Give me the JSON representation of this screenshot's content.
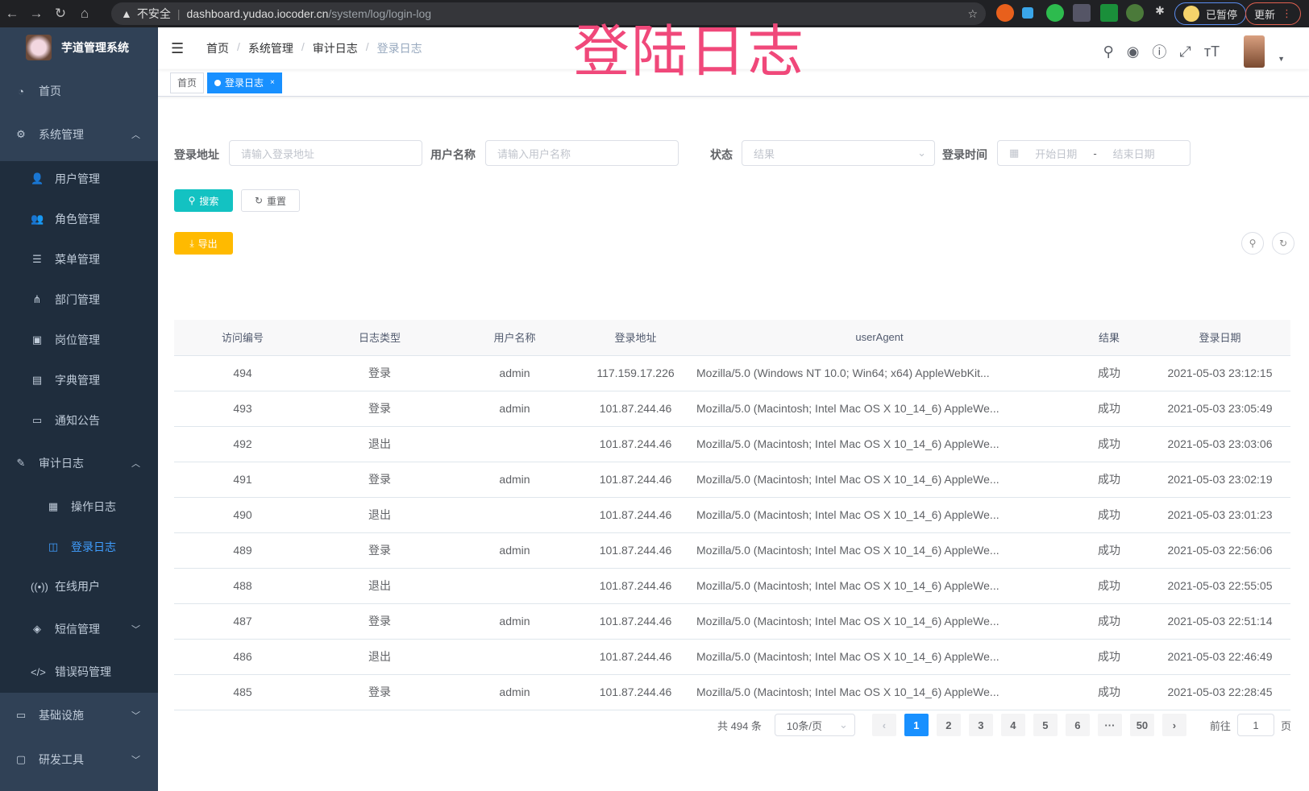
{
  "browser": {
    "insecure": "不安全",
    "url_host": "dashboard.yudao.iocoder.cn",
    "url_path": "/system/log/login-log",
    "paused": "已暂停",
    "update": "更新"
  },
  "overlay_title": "登陆日志",
  "sidebar": {
    "title": "芋道管理系统",
    "items": [
      {
        "label": "首页",
        "icon": "dashboard-icon",
        "glyph": "◔"
      },
      {
        "label": "系统管理",
        "icon": "gear-icon",
        "glyph": "⚙",
        "arrow": "︿"
      },
      {
        "label": "用户管理",
        "icon": "user-icon",
        "glyph": "👤"
      },
      {
        "label": "角色管理",
        "icon": "role-icon",
        "glyph": "👥"
      },
      {
        "label": "菜单管理",
        "icon": "menu-icon",
        "glyph": "☰"
      },
      {
        "label": "部门管理",
        "icon": "tree-icon",
        "glyph": "⋔"
      },
      {
        "label": "岗位管理",
        "icon": "post-icon",
        "glyph": "▣"
      },
      {
        "label": "字典管理",
        "icon": "dict-icon",
        "glyph": "▤"
      },
      {
        "label": "通知公告",
        "icon": "message-icon",
        "glyph": "▭"
      },
      {
        "label": "审计日志",
        "icon": "log-icon",
        "glyph": "✎",
        "arrow": "︿"
      },
      {
        "label": "操作日志",
        "icon": "form-icon",
        "glyph": "▦"
      },
      {
        "label": "登录日志",
        "icon": "logininfor-icon",
        "glyph": "◫"
      },
      {
        "label": "在线用户",
        "icon": "online-icon",
        "glyph": "((•))"
      },
      {
        "label": "短信管理",
        "icon": "shield-icon",
        "glyph": "◈",
        "arrow": "﹀"
      },
      {
        "label": "错误码管理",
        "icon": "code-icon",
        "glyph": "</>"
      },
      {
        "label": "基础设施",
        "icon": "monitor-icon",
        "glyph": "▭",
        "arrow": "﹀"
      },
      {
        "label": "研发工具",
        "icon": "tool-icon",
        "glyph": "▢",
        "arrow": "﹀"
      }
    ]
  },
  "breadcrumb": [
    "首页",
    "系统管理",
    "审计日志",
    "登录日志"
  ],
  "tags": {
    "home": "首页",
    "current": "登录日志",
    "close": "×"
  },
  "search": {
    "ip_label": "登录地址",
    "ip_placeholder": "请输入登录地址",
    "user_label": "用户名称",
    "user_placeholder": "请输入用户名称",
    "status_label": "状态",
    "status_placeholder": "结果",
    "time_label": "登录时间",
    "start_placeholder": "开始日期",
    "range_sep": "-",
    "end_placeholder": "结束日期",
    "search_btn": "搜索",
    "reset_btn": "重置",
    "export_btn": "导出"
  },
  "colors": {
    "primary": "#1890ff",
    "search_btn": "#13c2c2",
    "export_btn": "#ffba00",
    "sidebar": "#304156"
  },
  "table": {
    "columns": [
      "访问编号",
      "日志类型",
      "用户名称",
      "登录地址",
      "userAgent",
      "结果",
      "登录日期"
    ],
    "rows": [
      [
        "494",
        "登录",
        "admin",
        "117.159.17.226",
        "Mozilla/5.0 (Windows NT 10.0; Win64; x64) AppleWebKit...",
        "成功",
        "2021-05-03 23:12:15"
      ],
      [
        "493",
        "登录",
        "admin",
        "101.87.244.46",
        "Mozilla/5.0 (Macintosh; Intel Mac OS X 10_14_6) AppleWe...",
        "成功",
        "2021-05-03 23:05:49"
      ],
      [
        "492",
        "退出",
        "",
        "101.87.244.46",
        "Mozilla/5.0 (Macintosh; Intel Mac OS X 10_14_6) AppleWe...",
        "成功",
        "2021-05-03 23:03:06"
      ],
      [
        "491",
        "登录",
        "admin",
        "101.87.244.46",
        "Mozilla/5.0 (Macintosh; Intel Mac OS X 10_14_6) AppleWe...",
        "成功",
        "2021-05-03 23:02:19"
      ],
      [
        "490",
        "退出",
        "",
        "101.87.244.46",
        "Mozilla/5.0 (Macintosh; Intel Mac OS X 10_14_6) AppleWe...",
        "成功",
        "2021-05-03 23:01:23"
      ],
      [
        "489",
        "登录",
        "admin",
        "101.87.244.46",
        "Mozilla/5.0 (Macintosh; Intel Mac OS X 10_14_6) AppleWe...",
        "成功",
        "2021-05-03 22:56:06"
      ],
      [
        "488",
        "退出",
        "",
        "101.87.244.46",
        "Mozilla/5.0 (Macintosh; Intel Mac OS X 10_14_6) AppleWe...",
        "成功",
        "2021-05-03 22:55:05"
      ],
      [
        "487",
        "登录",
        "admin",
        "101.87.244.46",
        "Mozilla/5.0 (Macintosh; Intel Mac OS X 10_14_6) AppleWe...",
        "成功",
        "2021-05-03 22:51:14"
      ],
      [
        "486",
        "退出",
        "",
        "101.87.244.46",
        "Mozilla/5.0 (Macintosh; Intel Mac OS X 10_14_6) AppleWe...",
        "成功",
        "2021-05-03 22:46:49"
      ],
      [
        "485",
        "登录",
        "admin",
        "101.87.244.46",
        "Mozilla/5.0 (Macintosh; Intel Mac OS X 10_14_6) AppleWe...",
        "成功",
        "2021-05-03 22:28:45"
      ]
    ]
  },
  "pagination": {
    "total": "共 494 条",
    "page_size": "10条/页",
    "prev": "‹",
    "pages": [
      "1",
      "2",
      "3",
      "4",
      "5",
      "6",
      "···",
      "50"
    ],
    "current": "1",
    "next": "›",
    "goto_label": "前往",
    "goto_value": "1",
    "goto_suffix": "页"
  }
}
